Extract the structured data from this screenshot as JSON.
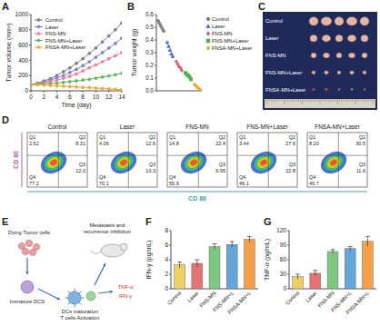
{
  "chart_data": [
    {
      "panel": "A",
      "type": "line",
      "x_label": "Time (day)",
      "y_label": "Tumor volume (mm³)",
      "x": [
        0,
        1,
        2,
        3,
        4,
        5,
        6,
        7,
        8,
        9,
        10,
        11,
        12,
        13,
        14
      ],
      "xlim": [
        0,
        14
      ],
      "xticks": [
        0,
        2,
        4,
        6,
        8,
        10,
        12,
        14
      ],
      "ylim": [
        0,
        1000
      ],
      "yticks": [
        0,
        200,
        400,
        600,
        800,
        1000
      ],
      "grid": false,
      "legend": "upper left",
      "series": [
        {
          "name": "Control",
          "color": "#7f7f7f",
          "marker": "circle",
          "line_style": "solid",
          "values": [
            80,
            100,
            130,
            160,
            200,
            250,
            300,
            360,
            420,
            490,
            560,
            640,
            720,
            800,
            890
          ]
        },
        {
          "name": "Laser",
          "color": "#7b7fd1",
          "marker": "circle",
          "line_style": "solid",
          "values": [
            80,
            95,
            115,
            140,
            170,
            200,
            240,
            280,
            330,
            380,
            440,
            500,
            560,
            620,
            690
          ]
        },
        {
          "name": "FNS-MN",
          "color": "#f07c9c",
          "marker": "circle",
          "line_style": "solid",
          "values": [
            80,
            90,
            105,
            120,
            140,
            165,
            190,
            220,
            260,
            300,
            340,
            380,
            420,
            460,
            500
          ]
        },
        {
          "name": "FNS-MN+Laser",
          "color": "#5cb85c",
          "marker": "circle",
          "line_style": "solid",
          "values": [
            80,
            85,
            90,
            95,
            100,
            110,
            120,
            130,
            140,
            150,
            165,
            180,
            195,
            210,
            230
          ]
        },
        {
          "name": "FNSA-MN+Laser",
          "color": "#f5a623",
          "marker": "circle",
          "line_style": "solid",
          "values": [
            80,
            78,
            75,
            70,
            65,
            60,
            55,
            50,
            45,
            40,
            35,
            30,
            25,
            20,
            15
          ]
        }
      ]
    },
    {
      "panel": "B",
      "type": "scatter",
      "y_label": "Tumor weight (g)",
      "tick_labels": "y",
      "ylim": [
        0,
        0.6
      ],
      "yticks": [
        {
          "value": 0,
          "label": "0.0"
        },
        {
          "value": 0.1,
          "label": "0.1"
        },
        {
          "value": 0.2,
          "label": "0.2"
        },
        {
          "value": 0.3,
          "label": "0.3"
        },
        {
          "value": 0.4,
          "label": "0.4"
        },
        {
          "value": 0.5,
          "label": "0.5"
        },
        {
          "value": 0.6,
          "label": "0.6"
        }
      ],
      "grid": false,
      "legend": "upper right",
      "series": [
        {
          "name": "Control",
          "color": "#7f7f7f",
          "marker": "circle",
          "values": [
            0.55,
            0.53,
            0.51,
            0.49,
            0.47
          ]
        },
        {
          "name": "Laser",
          "color": "#4a6fd1",
          "marker": "triangle",
          "values": [
            0.38,
            0.35,
            0.32,
            0.29,
            0.27
          ]
        },
        {
          "name": "FNS-MN",
          "color": "#e05a6a",
          "marker": "diamond",
          "values": [
            0.23,
            0.21,
            0.19,
            0.18,
            0.16
          ]
        },
        {
          "name": "FNS-MN+Laser",
          "color": "#4caf50",
          "marker": "square",
          "values": [
            0.14,
            0.13,
            0.12,
            0.11,
            0.09
          ]
        },
        {
          "name": "FNSA-MN+Laser",
          "color": "#f5a623",
          "marker": "diamond",
          "values": [
            0.05,
            0.04,
            0.03,
            0.02,
            0.01
          ]
        }
      ]
    },
    {
      "panel": "F",
      "type": "bar",
      "y_label": "IFN-γ (pg/mL)",
      "categories": [
        "Control",
        "Laser",
        "FNS-MN",
        "FNS-MN+L",
        "FNSA-MN+L"
      ],
      "values": [
        3.3,
        3.5,
        5.8,
        6.1,
        6.8
      ],
      "errors": [
        0.4,
        0.5,
        0.4,
        0.4,
        0.4
      ],
      "colors": [
        "#efcf63",
        "#e57373",
        "#81c784",
        "#64a5dc",
        "#f4a04a"
      ],
      "ylim": [
        0,
        8
      ],
      "yticks": [
        0,
        2,
        4,
        6,
        8
      ],
      "grid": false
    },
    {
      "panel": "G",
      "type": "bar",
      "y_label": "TNF-α (pg/mL)",
      "categories": [
        "Control",
        "Laser",
        "FNS-MN",
        "FNS-MN+L",
        "FNSA-MN+L"
      ],
      "values": [
        25,
        32,
        77,
        83,
        98
      ],
      "errors": [
        5,
        6,
        4,
        4,
        10
      ],
      "colors": [
        "#efcf63",
        "#e57373",
        "#81c784",
        "#64a5dc",
        "#f4a04a"
      ],
      "ylim": [
        0,
        120
      ],
      "yticks": [
        0,
        30,
        60,
        90,
        120
      ],
      "grid": false
    }
  ],
  "photo": {
    "panel": "C",
    "rows": [
      "Control",
      "Laser",
      "FNS-MN",
      "FNS-MN+Laser",
      "FNSA-MN+Laser"
    ]
  },
  "flow": {
    "panel": "D",
    "x_label": "CD 86",
    "y_label": "CD 80",
    "plots": [
      {
        "title": "Control",
        "quadrants": [
          {
            "label": "Q1",
            "value": "2.52"
          },
          {
            "label": "Q2",
            "value": "8.31"
          },
          {
            "label": "Q3",
            "value": "12.0"
          },
          {
            "label": "Q4",
            "value": "77.2"
          }
        ]
      },
      {
        "title": "Laser",
        "quadrants": [
          {
            "label": "Q1",
            "value": "4.06"
          },
          {
            "label": "Q2",
            "value": "12.6"
          },
          {
            "label": "Q3",
            "value": "13.3"
          },
          {
            "label": "Q4",
            "value": "70.1"
          }
        ]
      },
      {
        "title": "FNS-MN",
        "quadrants": [
          {
            "label": "Q1",
            "value": "14.8"
          },
          {
            "label": "Q2",
            "value": "22.4"
          },
          {
            "label": "Q3",
            "value": "6.95"
          },
          {
            "label": "Q4",
            "value": "55.9"
          }
        ]
      },
      {
        "title": "FNS-MN+Laser",
        "quadrants": [
          {
            "label": "Q1",
            "value": "3.44"
          },
          {
            "label": "Q2",
            "value": "27.6"
          },
          {
            "label": "Q3",
            "value": "22.8"
          },
          {
            "label": "Q4",
            "value": "46.1"
          }
        ]
      },
      {
        "title": "FNSA-MN+Laser",
        "quadrants": [
          {
            "label": "Q1",
            "value": "8.20"
          },
          {
            "label": "Q2",
            "value": "30.5"
          },
          {
            "label": "Q3",
            "value": "11.6"
          },
          {
            "label": "Q4",
            "value": "49.7"
          }
        ]
      }
    ]
  },
  "diagram": {
    "panel": "E",
    "nodes": [
      {
        "lines": [
          "Dying Tumor cells"
        ]
      },
      {
        "lines": [
          "Immature DCS"
        ]
      },
      {
        "lines": [
          "DCs maturation",
          "T cells Activation"
        ]
      },
      {
        "lines": [
          "Metastasis and",
          "recurrence inhibition"
        ]
      },
      {
        "lines": [
          "TNF-α"
        ]
      },
      {
        "lines": [
          "IFN-γ"
        ]
      }
    ]
  }
}
